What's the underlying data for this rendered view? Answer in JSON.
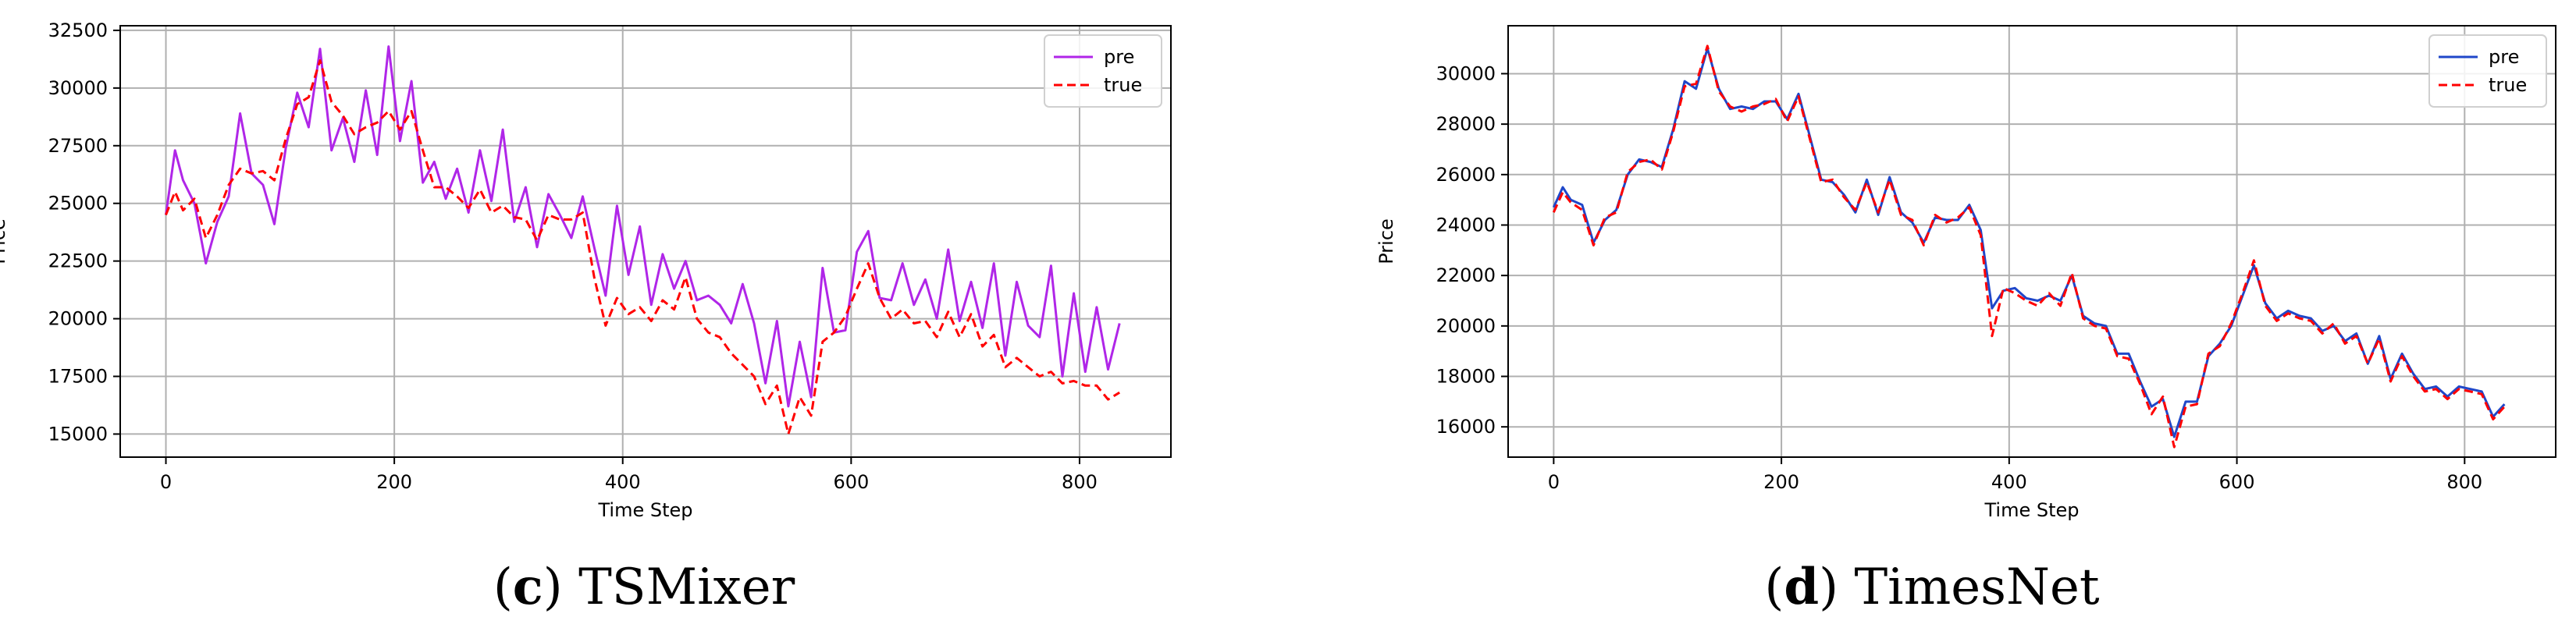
{
  "charts": [
    {
      "id": "c",
      "caption": {
        "open": "(",
        "letter": "c",
        "close": ")",
        "name": " TSMixer"
      },
      "pre_color": "#b026e8",
      "true_color": "#ff0000"
    },
    {
      "id": "d",
      "caption": {
        "open": "(",
        "letter": "d",
        "close": ")",
        "name": " TimesNet"
      },
      "pre_color": "#1f47c9",
      "true_color": "#ff0000"
    }
  ],
  "chart_data": [
    {
      "type": "line",
      "title": "",
      "xlabel": "Time Step",
      "ylabel": "Price",
      "xlim": [
        -40,
        880
      ],
      "ylim": [
        14000,
        32700
      ],
      "xticks": [
        0,
        200,
        400,
        600,
        800
      ],
      "yticks": [
        15000,
        17500,
        20000,
        22500,
        25000,
        27500,
        30000,
        32500
      ],
      "ytick_labels": [
        "15000",
        "17500",
        "20000",
        "22500",
        "25000",
        "27500",
        "30000",
        "32500"
      ],
      "grid": true,
      "legend": "top-right",
      "series": [
        {
          "name": "pre",
          "style": "solid",
          "x": [
            0,
            8,
            15,
            25,
            35,
            45,
            55,
            65,
            75,
            85,
            95,
            105,
            115,
            125,
            135,
            145,
            155,
            165,
            175,
            185,
            195,
            205,
            215,
            225,
            235,
            245,
            255,
            265,
            275,
            285,
            295,
            305,
            315,
            325,
            335,
            345,
            355,
            365,
            375,
            385,
            395,
            405,
            415,
            425,
            435,
            445,
            455,
            465,
            475,
            485,
            495,
            505,
            515,
            525,
            535,
            545,
            555,
            565,
            575,
            585,
            595,
            605,
            615,
            625,
            635,
            645,
            655,
            665,
            675,
            685,
            695,
            705,
            715,
            725,
            735,
            745,
            755,
            765,
            775,
            785,
            795,
            805,
            815,
            825,
            835
          ],
          "y": [
            24500,
            27300,
            26000,
            25000,
            22400,
            24200,
            25300,
            28900,
            26300,
            25800,
            24100,
            27400,
            29800,
            28300,
            31700,
            27300,
            28700,
            26800,
            29900,
            27100,
            31800,
            27700,
            30300,
            25900,
            26800,
            25200,
            26500,
            24600,
            27300,
            25100,
            28200,
            24200,
            25700,
            23100,
            25400,
            24500,
            23500,
            25300,
            23100,
            21000,
            24900,
            21900,
            24000,
            20600,
            22800,
            21300,
            22500,
            20800,
            21000,
            20600,
            19800,
            21500,
            19800,
            17200,
            19900,
            16200,
            19000,
            16600,
            22200,
            19400,
            19500,
            22900,
            23800,
            20900,
            20800,
            22400,
            20600,
            21700,
            20000,
            23000,
            19900,
            21600,
            19600,
            22400,
            18400,
            21600,
            19700,
            19200,
            22300,
            17500,
            21100,
            17700,
            20500,
            17800,
            19800
          ]
        },
        {
          "name": "true",
          "style": "dashed",
          "x": [
            0,
            8,
            15,
            25,
            35,
            45,
            55,
            65,
            75,
            85,
            95,
            105,
            115,
            125,
            135,
            145,
            155,
            165,
            175,
            185,
            195,
            205,
            215,
            225,
            235,
            245,
            255,
            265,
            275,
            285,
            295,
            305,
            315,
            325,
            335,
            345,
            355,
            365,
            375,
            385,
            395,
            405,
            415,
            425,
            435,
            445,
            455,
            465,
            475,
            485,
            495,
            505,
            515,
            525,
            535,
            545,
            555,
            565,
            575,
            585,
            595,
            605,
            615,
            625,
            635,
            645,
            655,
            665,
            675,
            685,
            695,
            705,
            715,
            725,
            735,
            745,
            755,
            765,
            775,
            785,
            795,
            805,
            815,
            825,
            835
          ],
          "y": [
            24500,
            25500,
            24700,
            25200,
            23500,
            24500,
            25800,
            26500,
            26300,
            26400,
            26000,
            27800,
            29300,
            29600,
            31200,
            29400,
            28800,
            28000,
            28300,
            28500,
            29000,
            28200,
            29000,
            27300,
            25700,
            25700,
            25300,
            24800,
            25600,
            24600,
            24900,
            24400,
            24300,
            23400,
            24500,
            24300,
            24300,
            24600,
            21800,
            19700,
            20900,
            20200,
            20500,
            19900,
            20800,
            20400,
            21800,
            20000,
            19400,
            19200,
            18500,
            18000,
            17500,
            16300,
            17100,
            15000,
            16600,
            15800,
            19000,
            19400,
            20100,
            21300,
            22400,
            20900,
            20000,
            20400,
            19800,
            19900,
            19200,
            20300,
            19200,
            20200,
            18800,
            19300,
            17900,
            18300,
            17900,
            17500,
            17700,
            17200,
            17300,
            17100,
            17100,
            16500,
            16800
          ]
        }
      ]
    },
    {
      "type": "line",
      "title": "",
      "xlabel": "Time Step",
      "ylabel": "Price",
      "xlim": [
        -40,
        880
      ],
      "ylim": [
        14800,
        31900
      ],
      "xticks": [
        0,
        200,
        400,
        600,
        800
      ],
      "yticks": [
        16000,
        18000,
        20000,
        22000,
        24000,
        26000,
        28000,
        30000
      ],
      "ytick_labels": [
        "16000",
        "18000",
        "20000",
        "22000",
        "24000",
        "26000",
        "28000",
        "30000"
      ],
      "grid": true,
      "legend": "top-right",
      "series": [
        {
          "name": "pre",
          "style": "solid",
          "x": [
            0,
            8,
            15,
            25,
            35,
            45,
            55,
            65,
            75,
            85,
            95,
            105,
            115,
            125,
            135,
            145,
            155,
            165,
            175,
            185,
            195,
            205,
            215,
            225,
            235,
            245,
            255,
            265,
            275,
            285,
            295,
            305,
            315,
            325,
            335,
            345,
            355,
            365,
            375,
            385,
            395,
            405,
            415,
            425,
            435,
            445,
            455,
            465,
            475,
            485,
            495,
            505,
            515,
            525,
            535,
            545,
            555,
            565,
            575,
            585,
            595,
            605,
            615,
            625,
            635,
            645,
            655,
            665,
            675,
            685,
            695,
            705,
            715,
            725,
            735,
            745,
            755,
            765,
            775,
            785,
            795,
            805,
            815,
            825,
            835
          ],
          "y": [
            24700,
            25500,
            25000,
            24800,
            23300,
            24200,
            24600,
            26000,
            26600,
            26500,
            26300,
            27800,
            29700,
            29400,
            31000,
            29400,
            28600,
            28700,
            28600,
            28900,
            28900,
            28200,
            29200,
            27500,
            25800,
            25700,
            25200,
            24500,
            25800,
            24400,
            25900,
            24500,
            24100,
            23300,
            24300,
            24200,
            24200,
            24800,
            23800,
            20700,
            21400,
            21500,
            21100,
            21000,
            21200,
            21000,
            22000,
            20400,
            20100,
            20000,
            18900,
            18900,
            17800,
            16800,
            17100,
            15600,
            17000,
            17000,
            18800,
            19300,
            20000,
            21200,
            22400,
            20900,
            20300,
            20600,
            20400,
            20300,
            19800,
            20000,
            19400,
            19700,
            18500,
            19600,
            17900,
            18900,
            18100,
            17500,
            17600,
            17200,
            17600,
            17500,
            17400,
            16400,
            16900
          ]
        },
        {
          "name": "true",
          "style": "dashed",
          "x": [
            0,
            8,
            15,
            25,
            35,
            45,
            55,
            65,
            75,
            85,
            95,
            105,
            115,
            125,
            135,
            145,
            155,
            165,
            175,
            185,
            195,
            205,
            215,
            225,
            235,
            245,
            255,
            265,
            275,
            285,
            295,
            305,
            315,
            325,
            335,
            345,
            355,
            365,
            375,
            385,
            395,
            405,
            415,
            425,
            435,
            445,
            455,
            465,
            475,
            485,
            495,
            505,
            515,
            525,
            535,
            545,
            555,
            565,
            575,
            585,
            595,
            605,
            615,
            625,
            635,
            645,
            655,
            665,
            675,
            685,
            695,
            705,
            715,
            725,
            735,
            745,
            755,
            765,
            775,
            785,
            795,
            805,
            815,
            825,
            835
          ],
          "y": [
            24500,
            25300,
            24900,
            24600,
            23200,
            24300,
            24500,
            26100,
            26500,
            26600,
            26200,
            27700,
            29500,
            29600,
            31100,
            29300,
            28700,
            28500,
            28700,
            28800,
            29000,
            28100,
            29100,
            27400,
            25700,
            25800,
            25100,
            24600,
            25700,
            24500,
            25800,
            24400,
            24200,
            23200,
            24400,
            24100,
            24300,
            24700,
            23600,
            19600,
            21500,
            21300,
            21000,
            20800,
            21300,
            20800,
            22100,
            20300,
            20000,
            19900,
            18800,
            18700,
            17700,
            16500,
            17200,
            15200,
            16800,
            16900,
            18900,
            19200,
            20100,
            21300,
            22600,
            20800,
            20200,
            20500,
            20300,
            20200,
            19700,
            20100,
            19300,
            19600,
            18500,
            19500,
            17800,
            18800,
            18000,
            17400,
            17500,
            17100,
            17500,
            17400,
            17300,
            16300,
            16800
          ]
        }
      ]
    }
  ]
}
